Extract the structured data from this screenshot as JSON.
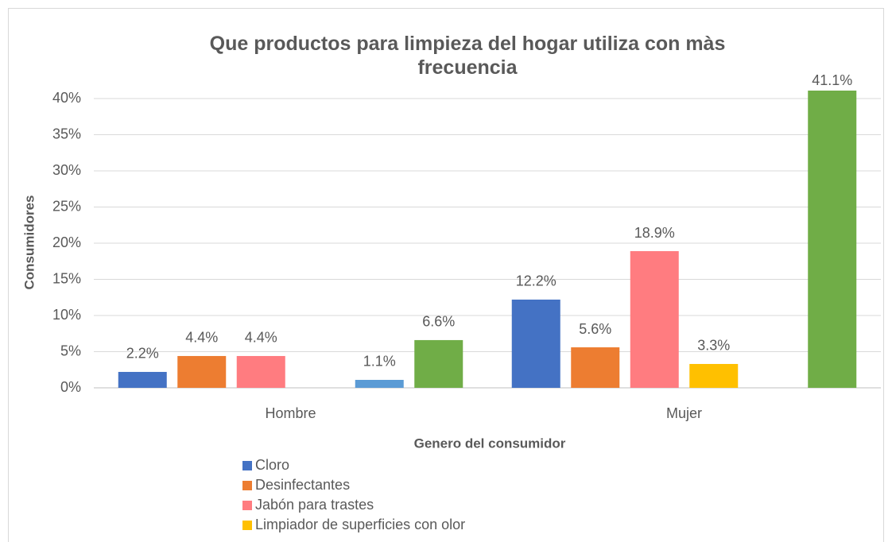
{
  "chart_data": {
    "type": "bar",
    "title": "Que productos para limpieza del hogar utiliza con màs frecuencia",
    "xlabel": "Genero del consumidor",
    "ylabel": "Consumidores",
    "categories": [
      "Hombre",
      "Mujer"
    ],
    "series": [
      {
        "name": "Cloro",
        "color": "#4472c4",
        "values": [
          2.2,
          12.2
        ],
        "value_labels": [
          "2.2%",
          "12.2%"
        ]
      },
      {
        "name": "Desinfectantes",
        "color": "#ed7d31",
        "values": [
          4.4,
          5.6
        ],
        "value_labels": [
          "4.4%",
          "5.6%"
        ]
      },
      {
        "name": "Jabón para trastes",
        "color": "#ff7c80",
        "values": [
          4.4,
          18.9
        ],
        "value_labels": [
          "4.4%",
          "18.9%"
        ]
      },
      {
        "name": "Limpiador de superficies con olor",
        "color": "#ffc000",
        "values": [
          null,
          3.3
        ],
        "value_labels": [
          null,
          "3.3%"
        ]
      },
      {
        "color": "#5b9bd5",
        "values": [
          1.1,
          null
        ],
        "value_labels": [
          "1.1%",
          null
        ]
      },
      {
        "color": "#70ad47",
        "values": [
          6.6,
          41.1
        ],
        "value_labels": [
          "6.6%",
          "41.1%"
        ]
      }
    ],
    "ylim": [
      0,
      40
    ],
    "yticks": [
      {
        "value": 0,
        "label": "0%"
      },
      {
        "value": 5,
        "label": "5%"
      },
      {
        "value": 10,
        "label": "10%"
      },
      {
        "value": 15,
        "label": "15%"
      },
      {
        "value": 20,
        "label": "20%"
      },
      {
        "value": 25,
        "label": "25%"
      },
      {
        "value": 30,
        "label": "30%"
      },
      {
        "value": 35,
        "label": "35%"
      },
      {
        "value": 40,
        "label": "40%"
      }
    ],
    "grid": true
  }
}
